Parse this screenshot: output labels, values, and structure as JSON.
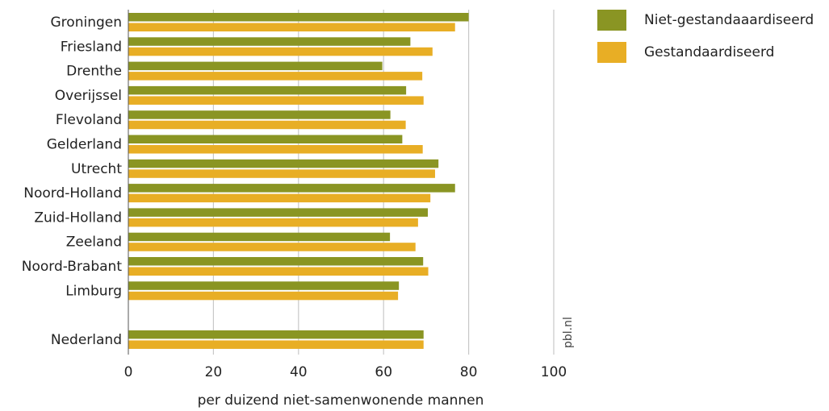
{
  "chart_data": {
    "type": "bar",
    "orientation": "horizontal",
    "categories": [
      "Groningen",
      "Friesland",
      "Drenthe",
      "Overijssel",
      "Flevoland",
      "Gelderland",
      "Utrecht",
      "Noord-Holland",
      "Zuid-Holland",
      "Zeeland",
      "Noord-Brabant",
      "Limburg",
      "",
      "Nederland"
    ],
    "series": [
      {
        "name": "Niet-gestandaaardiseerd",
        "color": "#8a9523",
        "values": [
          80,
          66.3,
          59.7,
          65.3,
          61.6,
          64.4,
          72.9,
          76.8,
          70.4,
          61.5,
          69.3,
          63.6,
          null,
          69.4
        ]
      },
      {
        "name": "Gestandaardiseerd",
        "color": "#e8ae25",
        "values": [
          76.8,
          71.5,
          69.1,
          69.4,
          65.2,
          69.2,
          72.1,
          71.0,
          68.1,
          67.5,
          70.5,
          63.4,
          null,
          69.4
        ]
      }
    ],
    "xlim": [
      0,
      100
    ],
    "xticks": [
      0,
      20,
      40,
      60,
      80,
      100
    ],
    "xlabel": "per duizend niet-samenwonende mannen",
    "grid": true,
    "legend_position": "top-right"
  },
  "source_mark": "pbl.nl"
}
